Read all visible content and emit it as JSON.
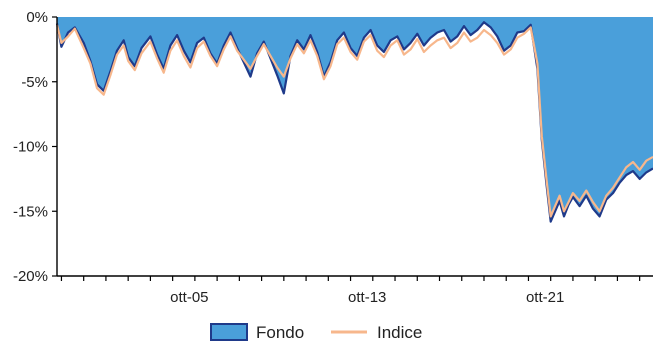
{
  "chart_data": {
    "type": "area",
    "title": "",
    "xlabel": "",
    "ylabel": "",
    "ylim": [
      -20,
      0
    ],
    "xlim": [
      1999.8,
      2026.6
    ],
    "grid": false,
    "y_ticks": [
      {
        "value": 0,
        "label": "0%"
      },
      {
        "value": -5,
        "label": "-5%"
      },
      {
        "value": -10,
        "label": "-10%"
      },
      {
        "value": -15,
        "label": "-15%"
      },
      {
        "value": -20,
        "label": "-20%"
      }
    ],
    "x_ticks": [
      {
        "value": 2005.75,
        "label": "ott-05"
      },
      {
        "value": 2013.75,
        "label": "ott-13"
      },
      {
        "value": 2021.75,
        "label": "ott-21"
      }
    ],
    "legend_position": "bottom-center",
    "series": [
      {
        "name": "Fondo",
        "style": "area",
        "color": "#4a9fda",
        "edge_color": "#1f3a8a",
        "x": [
          1999.8,
          2000.0,
          2000.3,
          2000.6,
          2001.0,
          2001.3,
          2001.6,
          2001.9,
          2002.2,
          2002.5,
          2002.8,
          2003.0,
          2003.3,
          2003.6,
          2004.0,
          2004.3,
          2004.6,
          2004.9,
          2005.2,
          2005.5,
          2005.8,
          2006.1,
          2006.4,
          2006.7,
          2007.0,
          2007.3,
          2007.6,
          2007.9,
          2008.2,
          2008.5,
          2008.8,
          2009.1,
          2009.4,
          2009.7,
          2010.0,
          2010.3,
          2010.6,
          2010.9,
          2011.2,
          2011.5,
          2011.8,
          2012.1,
          2012.4,
          2012.7,
          2013.0,
          2013.3,
          2013.6,
          2013.9,
          2014.2,
          2014.5,
          2014.8,
          2015.1,
          2015.4,
          2015.7,
          2016.0,
          2016.3,
          2016.6,
          2016.9,
          2017.2,
          2017.5,
          2017.8,
          2018.1,
          2018.4,
          2018.7,
          2019.0,
          2019.3,
          2019.6,
          2019.9,
          2020.2,
          2020.5,
          2020.8,
          2021.1,
          2021.4,
          2021.6,
          2021.8,
          2022.0,
          2022.2,
          2022.4,
          2022.6,
          2022.8,
          2023.0,
          2023.3,
          2023.6,
          2023.9,
          2024.2,
          2024.5,
          2024.8,
          2025.1,
          2025.4,
          2025.7,
          2026.0,
          2026.3,
          2026.6
        ],
        "values": [
          -0.5,
          -2.3,
          -1.2,
          -0.8,
          -2.0,
          -3.4,
          -5.2,
          -5.7,
          -4.2,
          -2.6,
          -1.8,
          -3.1,
          -3.8,
          -2.4,
          -1.5,
          -2.9,
          -4.0,
          -2.2,
          -1.4,
          -2.6,
          -3.5,
          -2.0,
          -1.6,
          -2.8,
          -3.6,
          -2.2,
          -1.2,
          -2.4,
          -3.5,
          -4.6,
          -2.8,
          -1.9,
          -3.2,
          -4.5,
          -5.9,
          -3.0,
          -1.8,
          -2.5,
          -1.4,
          -2.7,
          -4.6,
          -3.5,
          -1.8,
          -1.2,
          -2.4,
          -3.0,
          -1.6,
          -1.0,
          -2.2,
          -2.7,
          -1.8,
          -1.5,
          -2.5,
          -2.0,
          -1.3,
          -2.2,
          -1.6,
          -1.2,
          -1.0,
          -1.9,
          -1.5,
          -0.7,
          -1.4,
          -1.0,
          -0.4,
          -0.8,
          -1.5,
          -2.6,
          -2.2,
          -1.2,
          -1.1,
          -0.6,
          -4.0,
          -9.5,
          -12.8,
          -15.8,
          -15.0,
          -14.2,
          -15.4,
          -14.5,
          -13.9,
          -14.6,
          -13.8,
          -14.8,
          -15.4,
          -14.1,
          -13.6,
          -12.8,
          -12.2,
          -11.9,
          -12.5,
          -12.0,
          -11.7
        ]
      },
      {
        "name": "Indice",
        "style": "line",
        "color": "#f7b78c",
        "x": [
          1999.8,
          2000.0,
          2000.3,
          2000.6,
          2001.0,
          2001.3,
          2001.6,
          2001.9,
          2002.2,
          2002.5,
          2002.8,
          2003.0,
          2003.3,
          2003.6,
          2004.0,
          2004.3,
          2004.6,
          2004.9,
          2005.2,
          2005.5,
          2005.8,
          2006.1,
          2006.4,
          2006.7,
          2007.0,
          2007.3,
          2007.6,
          2007.9,
          2008.2,
          2008.5,
          2008.8,
          2009.1,
          2009.4,
          2009.7,
          2010.0,
          2010.3,
          2010.6,
          2010.9,
          2011.2,
          2011.5,
          2011.8,
          2012.1,
          2012.4,
          2012.7,
          2013.0,
          2013.3,
          2013.6,
          2013.9,
          2014.2,
          2014.5,
          2014.8,
          2015.1,
          2015.4,
          2015.7,
          2016.0,
          2016.3,
          2016.6,
          2016.9,
          2017.2,
          2017.5,
          2017.8,
          2018.1,
          2018.4,
          2018.7,
          2019.0,
          2019.3,
          2019.6,
          2019.9,
          2020.2,
          2020.5,
          2020.8,
          2021.1,
          2021.4,
          2021.6,
          2021.8,
          2022.0,
          2022.2,
          2022.4,
          2022.6,
          2022.8,
          2023.0,
          2023.3,
          2023.6,
          2023.9,
          2024.2,
          2024.5,
          2024.8,
          2025.1,
          2025.4,
          2025.7,
          2026.0,
          2026.3,
          2026.6
        ],
        "values": [
          -0.6,
          -2.0,
          -1.5,
          -0.9,
          -2.4,
          -3.6,
          -5.5,
          -6.0,
          -4.5,
          -2.9,
          -2.2,
          -3.4,
          -4.1,
          -2.8,
          -1.9,
          -3.2,
          -4.3,
          -2.6,
          -1.8,
          -3.0,
          -3.9,
          -2.4,
          -1.9,
          -3.0,
          -3.8,
          -2.5,
          -1.5,
          -2.6,
          -3.3,
          -4.0,
          -3.0,
          -2.1,
          -3.0,
          -3.9,
          -4.6,
          -3.2,
          -2.1,
          -2.8,
          -1.8,
          -3.0,
          -4.8,
          -3.8,
          -2.1,
          -1.6,
          -2.7,
          -3.3,
          -1.9,
          -1.4,
          -2.6,
          -3.1,
          -2.2,
          -1.8,
          -2.9,
          -2.5,
          -1.7,
          -2.7,
          -2.2,
          -1.8,
          -1.6,
          -2.4,
          -2.0,
          -1.2,
          -1.9,
          -1.6,
          -1.0,
          -1.4,
          -2.0,
          -2.9,
          -2.5,
          -1.6,
          -1.3,
          -0.8,
          -3.6,
          -9.2,
          -12.4,
          -15.4,
          -14.6,
          -13.8,
          -15.0,
          -14.3,
          -13.6,
          -14.2,
          -13.4,
          -14.3,
          -15.0,
          -13.8,
          -13.2,
          -12.4,
          -11.6,
          -11.2,
          -11.8,
          -11.1,
          -10.8
        ]
      }
    ]
  }
}
